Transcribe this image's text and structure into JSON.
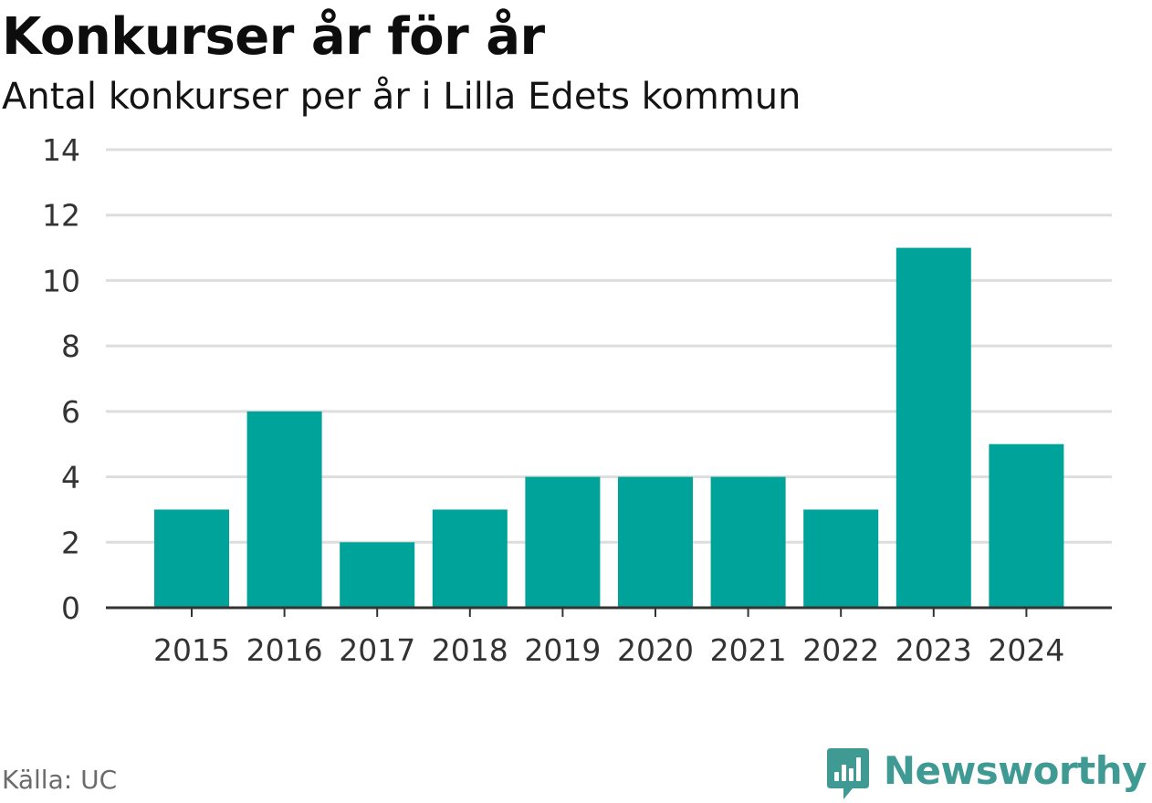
{
  "title": "Konkurser år för år",
  "subtitle": "Antal konkurser per år i Lilla Edets kommun",
  "source": "Källa: UC",
  "brand": "Newsworthy",
  "colors": {
    "bar": "#00a399",
    "grid": "#dddddd",
    "axis": "#333333",
    "brand": "#3f9a93"
  },
  "chart_data": {
    "type": "bar",
    "title": "Konkurser år för år",
    "subtitle": "Antal konkurser per år i Lilla Edets kommun",
    "categories": [
      "2015",
      "2016",
      "2017",
      "2018",
      "2019",
      "2020",
      "2021",
      "2022",
      "2023",
      "2024"
    ],
    "values": [
      3,
      6,
      2,
      3,
      4,
      4,
      4,
      3,
      11,
      5
    ],
    "xlabel": "",
    "ylabel": "",
    "ylim": [
      0,
      14
    ],
    "yticks": [
      0,
      2,
      4,
      6,
      8,
      10,
      12,
      14
    ],
    "grid": true,
    "legend": "none"
  }
}
